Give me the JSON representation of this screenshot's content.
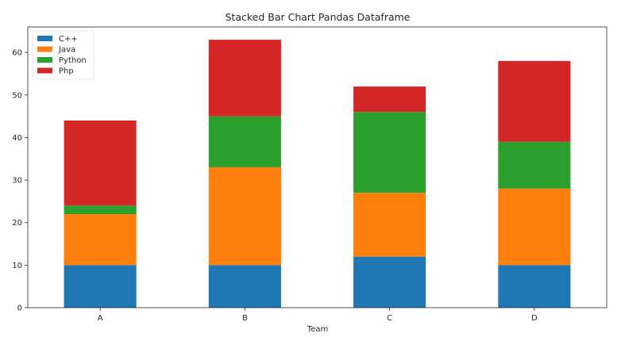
{
  "chart_data": {
    "type": "bar",
    "stacked": true,
    "title": "Stacked Bar Chart Pandas Dataframe",
    "xlabel": "Team",
    "ylabel": "",
    "categories": [
      "A",
      "B",
      "C",
      "D"
    ],
    "ylim": [
      0,
      66
    ],
    "yticks": [
      0,
      10,
      20,
      30,
      40,
      50,
      60
    ],
    "grid": false,
    "legend_position": "top-left",
    "series": [
      {
        "name": "C++",
        "color": "#1f77b4",
        "values": [
          10,
          10,
          12,
          10
        ]
      },
      {
        "name": "Java",
        "color": "#ff7f0e",
        "values": [
          12,
          23,
          15,
          18
        ]
      },
      {
        "name": "Python",
        "color": "#2ca02c",
        "values": [
          2,
          12,
          19,
          11
        ]
      },
      {
        "name": "Php",
        "color": "#d62728",
        "values": [
          20,
          18,
          6,
          19
        ]
      }
    ]
  }
}
